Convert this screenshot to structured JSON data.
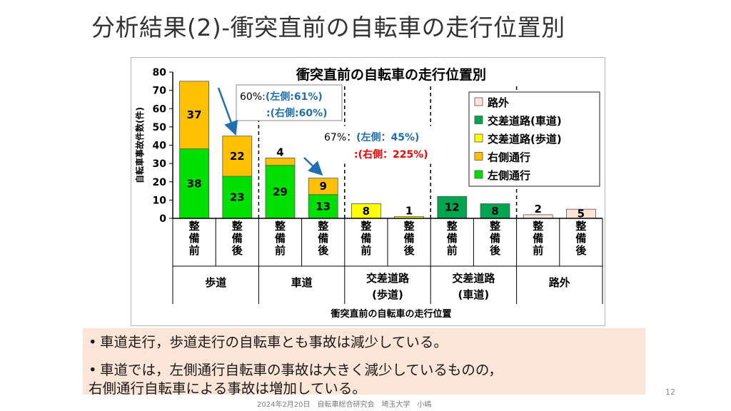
{
  "slide": {
    "title": "分析結果(2)-衝突直前の自転車の走行位置別",
    "page_number": "12",
    "footer": "2024年2月20日　自転車総合研究会　埼玉大学　小嶋"
  },
  "bullets": [
    {
      "line1": "車道走行，歩道走行の自転車とも事故は減少している。",
      "line2": ""
    },
    {
      "line1": "車道では，左側通行自転車の事故は大きく減少しているものの，",
      "line2": "右側通行自転車による事故は増加している。"
    }
  ],
  "chart_data": {
    "type": "bar",
    "stacked": true,
    "title": "衝突直前の自転車の走行位置別",
    "ylabel": "自転車事故件数(件)",
    "xlabel": "衝突直前の自転車の走行位置",
    "ylim": [
      0,
      80
    ],
    "yticks": [
      0,
      10,
      20,
      30,
      40,
      50,
      60,
      70,
      80
    ],
    "categories": [
      "整備前",
      "整備後",
      "整備前",
      "整備後",
      "整備前",
      "整備後",
      "整備前",
      "整備後",
      "整備前",
      "整備後"
    ],
    "groups": [
      {
        "label_lines": [
          "歩道"
        ],
        "span": [
          0,
          1
        ]
      },
      {
        "label_lines": [
          "車道"
        ],
        "span": [
          2,
          3
        ]
      },
      {
        "label_lines": [
          "交差道路",
          "(歩道)"
        ],
        "span": [
          4,
          5
        ]
      },
      {
        "label_lines": [
          "交差道路",
          "(車道)"
        ],
        "span": [
          6,
          7
        ]
      },
      {
        "label_lines": [
          "路外"
        ],
        "span": [
          8,
          9
        ]
      }
    ],
    "series": [
      {
        "name": "左側通行",
        "color": "#00e000",
        "values": [
          38,
          23,
          29,
          13,
          0,
          0,
          0,
          0,
          0,
          0
        ]
      },
      {
        "name": "右側通行",
        "color": "#ffc000",
        "values": [
          37,
          22,
          4,
          9,
          0,
          0,
          0,
          0,
          0,
          0
        ]
      },
      {
        "name": "交差道路(歩道)",
        "color": "#ffff00",
        "values": [
          0,
          0,
          0,
          0,
          8,
          1,
          0,
          0,
          0,
          0
        ]
      },
      {
        "name": "交差道路(車道)",
        "color": "#00a550",
        "values": [
          0,
          0,
          0,
          0,
          0,
          0,
          12,
          8,
          0,
          0
        ]
      },
      {
        "name": "路外",
        "color": "#fbe4d5",
        "values": [
          0,
          0,
          0,
          0,
          0,
          0,
          0,
          0,
          2,
          5
        ]
      }
    ],
    "legend_order": [
      "路外",
      "交差道路(車道)",
      "交差道路(歩道)",
      "右側通行",
      "左側通行"
    ],
    "legend_position": "right",
    "annotations": [
      {
        "prefix": "60%:",
        "left_label": "(左側:61%)",
        "right_label": ":(右側:60%)",
        "right_color": "#1f6fb5"
      },
      {
        "prefix": "67%：",
        "left_label": "(左側：45%)",
        "right_label": ":(右側：225%)",
        "right_color": "#ff0000"
      }
    ],
    "colors": {
      "annotation_blue": "#1f6fb5",
      "annotation_red": "#ff0000",
      "arrow": "#1f6fb5"
    }
  }
}
